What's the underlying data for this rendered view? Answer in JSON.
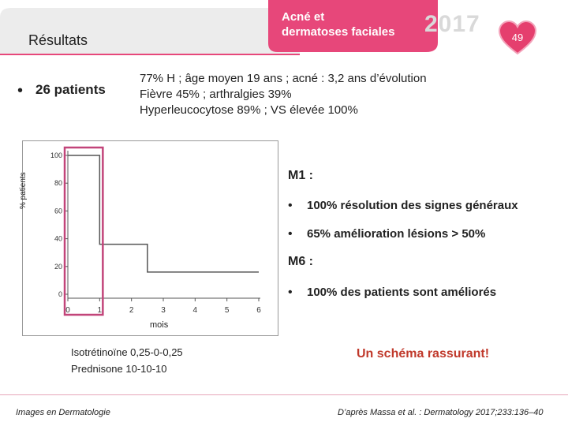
{
  "header": {
    "title": "Résultats",
    "event": {
      "line1": "Acné et",
      "line2": "dermatoses faciales"
    },
    "year": "2017",
    "page_number": "49"
  },
  "summary": {
    "bullet_label": "26 patients",
    "lines": [
      "77% H ; âge moyen 19 ans ; acné : 3,2 ans d’évolution",
      "Fièvre 45% ; arthralgies 39%",
      "Hyperleucocytose 89% ; VS élevée 100%"
    ]
  },
  "chart": {
    "ylabel": "% patients",
    "xlabel": "mois",
    "yticks": [
      "100",
      "80",
      "60",
      "40",
      "20",
      "0"
    ],
    "xticks": [
      "0",
      "1",
      "2",
      "3",
      "4",
      "5",
      "6"
    ]
  },
  "chart_data": {
    "type": "line",
    "xlabel": "mois",
    "ylabel": "% patients",
    "x": [
      0,
      1,
      1,
      2.5,
      2.5,
      6
    ],
    "y": [
      100,
      100,
      36,
      36,
      16,
      16
    ],
    "xlim": [
      0,
      6
    ],
    "ylim": [
      0,
      100
    ],
    "yticks": [
      0,
      20,
      40,
      60,
      80,
      100
    ],
    "xticks": [
      0,
      1,
      2,
      3,
      4,
      5,
      6
    ],
    "highlight_x_range": [
      0,
      1
    ],
    "highlight_color": "#c2457a"
  },
  "results": {
    "m1_label": "M1 :",
    "m1_items": [
      "100% résolution des signes généraux",
      "65% amélioration lésions > 50%"
    ],
    "m6_label": "M6 :",
    "m6_items": [
      "100% des patients sont améliorés"
    ]
  },
  "treatment": {
    "line1": "Isotrétinoïne 0,25-0-0,25",
    "line2": "Prednisone 10-10-10"
  },
  "conclusion": "Un schéma rassurant!",
  "footer": {
    "left": "Images en Dermatologie",
    "right": "D’après Massa et al. : Dermatology 2017;233:136–40"
  },
  "colors": {
    "brand_pink": "#e7477a",
    "heart": "#e53f6e",
    "header_grey": "#ececec"
  },
  "bullet_glyph": "•"
}
